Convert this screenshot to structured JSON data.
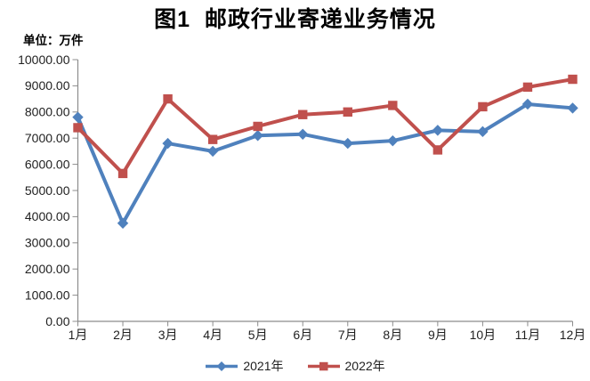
{
  "title": "图1  邮政行业寄递业务情况",
  "unit_label": "单位：万件",
  "colors": {
    "series_2021": "#4F81BD",
    "series_2022": "#C0504D",
    "axis": "#8C8C8C",
    "label_text": "#1F1F1F"
  },
  "legend": {
    "position": "bottom",
    "items": [
      {
        "label": "2021年",
        "marker": "diamond",
        "color": "#4F81BD"
      },
      {
        "label": "2022年",
        "marker": "square",
        "color": "#C0504D"
      }
    ]
  },
  "chart_data": {
    "type": "line",
    "title": "图1  邮政行业寄递业务情况",
    "unit": "万件",
    "categories": [
      "1月",
      "2月",
      "3月",
      "4月",
      "5月",
      "6月",
      "7月",
      "8月",
      "9月",
      "10月",
      "11月",
      "12月"
    ],
    "series": [
      {
        "name": "2021年",
        "color": "#4F81BD",
        "marker": "diamond",
        "values": [
          7800,
          3750,
          6800,
          6500,
          7100,
          7150,
          6800,
          6900,
          7300,
          7250,
          8300,
          8150
        ]
      },
      {
        "name": "2022年",
        "color": "#C0504D",
        "marker": "square",
        "values": [
          7400,
          5650,
          8500,
          6950,
          7450,
          7900,
          8000,
          8250,
          6550,
          8200,
          8950,
          9250
        ]
      }
    ],
    "ylim": [
      0,
      10000
    ],
    "ytick_step": 1000,
    "ytick_decimals": 2,
    "grid": false,
    "legend_position": "bottom"
  }
}
